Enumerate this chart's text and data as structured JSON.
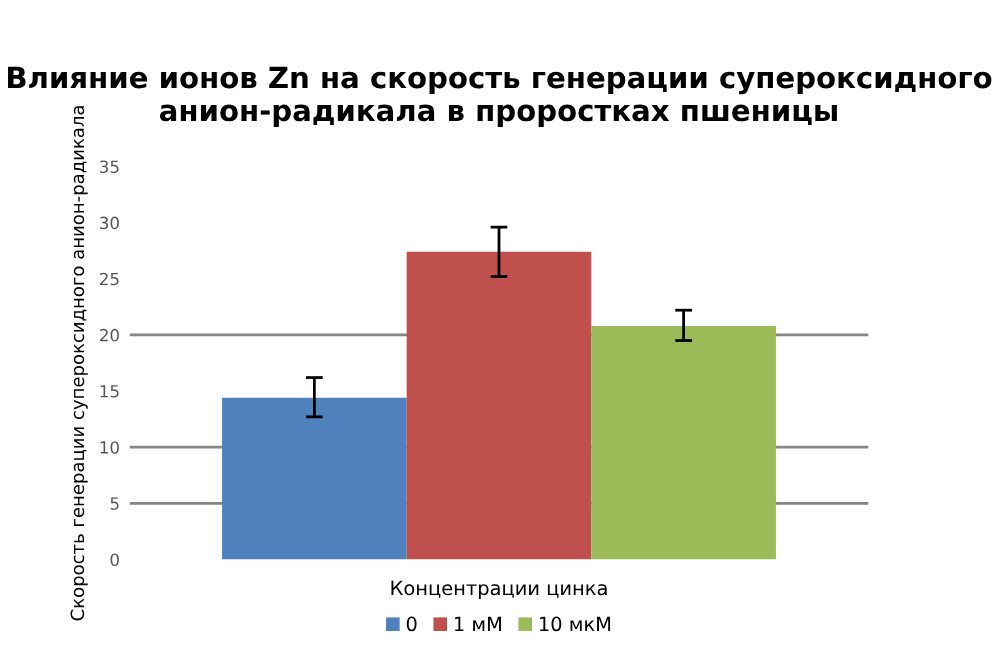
{
  "chart_data": {
    "type": "bar",
    "title": "Влияние ионов Zn на скорость генерации супероксидного анион-радикала в проростках пшеницы",
    "xlabel": "Концентрации цинка",
    "ylabel": "Скорость генерации супероксидного анион-радикала",
    "categories": [
      null
    ],
    "series": [
      {
        "name": "0",
        "color": "#4f81bd",
        "values": [
          14.4
        ],
        "errors": [
          [
            12.7,
            16.2
          ]
        ]
      },
      {
        "name": "1 мМ",
        "color": "#c0504d",
        "values": [
          27.4
        ],
        "errors": [
          [
            25.2,
            29.6
          ]
        ]
      },
      {
        "name": "10 мкМ",
        "color": "#9bbb59",
        "values": [
          20.8
        ],
        "errors": [
          [
            19.5,
            22.2
          ]
        ]
      }
    ],
    "ylim": [
      0,
      35
    ],
    "yticks": [
      0,
      5,
      10,
      15,
      20,
      25,
      30,
      35
    ],
    "ref_lines": [
      {
        "axis": "y",
        "value": 5,
        "color": "#868686"
      },
      {
        "axis": "y",
        "value": 10,
        "color": "#868686"
      },
      {
        "axis": "y",
        "value": 20,
        "color": "#868686"
      }
    ],
    "legend": "bottom"
  }
}
